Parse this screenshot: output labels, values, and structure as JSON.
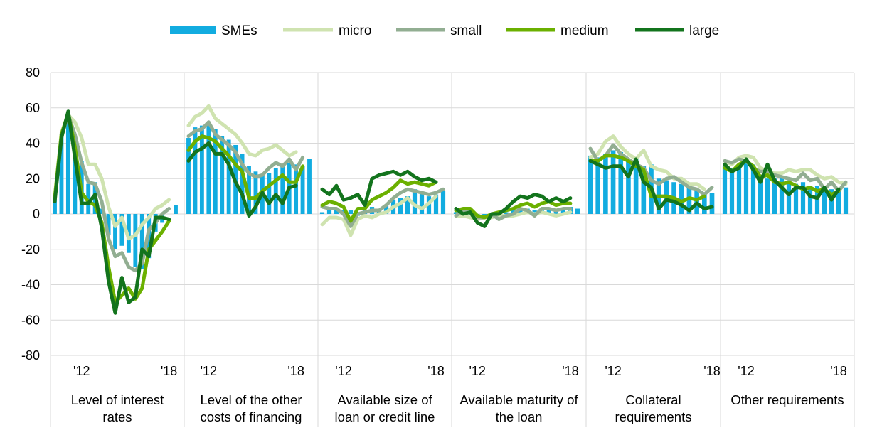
{
  "chart_data": {
    "type": "bar+line",
    "legend": [
      "SMEs",
      "micro",
      "small",
      "medium",
      "large"
    ],
    "legend_position": "top",
    "colors": {
      "SMEs": "#12ace0",
      "micro": "#cfe3b0",
      "small": "#92ae92",
      "medium": "#6bb000",
      "large": "#13741d"
    },
    "ylim": [
      -80,
      80
    ],
    "yticks": [
      -80,
      -60,
      -40,
      -20,
      0,
      20,
      40,
      60,
      80
    ],
    "ytick_labels": [
      "-80",
      "-60",
      "-40",
      "-20",
      "0",
      "20",
      "40",
      "60",
      "80"
    ],
    "grid": true,
    "panels": [
      {
        "label_lines": [
          "Level of interest",
          "rates"
        ],
        "xtick_labels": [
          "'12",
          "'18"
        ],
        "xtick_positions": [
          4,
          17
        ],
        "series": {
          "SMEs": [
            12,
            45,
            55,
            44,
            30,
            17,
            18,
            3,
            -12,
            -20,
            -18,
            -22,
            -30,
            -31,
            -25,
            -10,
            -5,
            0,
            5
          ],
          "micro": [
            10,
            46,
            56,
            52,
            43,
            28,
            28,
            20,
            4,
            -7,
            -2,
            -14,
            -12,
            -6,
            -2,
            3,
            5,
            8
          ],
          "small": [
            8,
            44,
            56,
            45,
            29,
            18,
            17,
            7,
            -14,
            -24,
            -22,
            -30,
            -32,
            -28,
            -9,
            -5,
            0,
            3
          ],
          "medium": [
            9,
            45,
            57,
            38,
            12,
            7,
            5,
            -5,
            -30,
            -50,
            -46,
            -42,
            -48,
            -42,
            -20,
            -15,
            -10,
            -4
          ],
          "large": [
            7,
            43,
            58,
            32,
            6,
            6,
            11,
            -8,
            -38,
            -56,
            -36,
            -50,
            -47,
            -20,
            -24,
            -2,
            -2,
            -3
          ]
        }
      },
      {
        "label_lines": [
          "Level of the other",
          "costs of financing"
        ],
        "xtick_labels": [
          "'12",
          "'18"
        ],
        "xtick_positions": [
          3,
          16
        ],
        "series": {
          "SMEs": [
            43,
            49,
            50,
            51,
            48,
            44,
            42,
            39,
            34,
            27,
            24,
            22,
            23,
            26,
            27,
            29,
            28,
            27,
            31
          ],
          "micro": [
            50,
            55,
            57,
            61,
            54,
            51,
            48,
            45,
            40,
            34,
            33,
            36,
            37,
            39,
            36,
            33,
            35
          ],
          "small": [
            44,
            47,
            48,
            52,
            45,
            42,
            39,
            35,
            28,
            23,
            21,
            22,
            26,
            29,
            27,
            31,
            25,
            32
          ],
          "medium": [
            36,
            41,
            44,
            43,
            41,
            37,
            33,
            28,
            24,
            9,
            9,
            13,
            16,
            19,
            22,
            18,
            18,
            27
          ],
          "large": [
            30,
            35,
            37,
            40,
            34,
            34,
            28,
            18,
            11,
            -1,
            4,
            12,
            6,
            11,
            6,
            15,
            16
          ]
        }
      },
      {
        "label_lines": [
          "Available size of",
          "loan or credit line"
        ],
        "xtick_labels": [
          "'12",
          "'18"
        ],
        "xtick_positions": [
          3,
          16
        ],
        "series": {
          "SMEs": [
            1,
            4,
            3,
            2,
            2,
            -1,
            2,
            4,
            3,
            5,
            8,
            9,
            10,
            14,
            12,
            10,
            11,
            13
          ],
          "micro": [
            -6,
            -2,
            -2,
            -3,
            -12,
            -3,
            -1,
            -2,
            0,
            1,
            4,
            6,
            9,
            5,
            3,
            6,
            10
          ],
          "small": [
            4,
            3,
            3,
            0,
            -7,
            0,
            1,
            2,
            2,
            5,
            9,
            12,
            14,
            13,
            12,
            11,
            12,
            14
          ],
          "medium": [
            5,
            7,
            6,
            4,
            -4,
            3,
            3,
            8,
            10,
            12,
            15,
            19,
            17,
            18,
            17,
            16,
            18
          ],
          "large": [
            14,
            11,
            16,
            8,
            9,
            11,
            5,
            20,
            22,
            23,
            24,
            22,
            24,
            21,
            19,
            20,
            18
          ]
        }
      },
      {
        "label_lines": [
          "Available maturity of",
          "the loan"
        ],
        "xtick_labels": [
          "'12",
          "'18"
        ],
        "xtick_positions": [
          3,
          16
        ],
        "series": {
          "SMEs": [
            1,
            2,
            1,
            -1,
            -1,
            -1,
            0,
            1,
            2,
            2,
            3,
            2,
            3,
            3,
            3,
            3,
            4,
            3
          ],
          "micro": [
            -1,
            -1,
            -2,
            -3,
            -2,
            -2,
            -1,
            -1,
            -1,
            0,
            1,
            0,
            1,
            0,
            -1,
            0,
            1
          ],
          "small": [
            -1,
            2,
            1,
            -2,
            -2,
            0,
            -3,
            -1,
            0,
            3,
            2,
            -1,
            3,
            3,
            2,
            3,
            3
          ],
          "medium": [
            2,
            3,
            3,
            -1,
            -2,
            0,
            1,
            2,
            3,
            5,
            6,
            4,
            6,
            7,
            5,
            6,
            6
          ],
          "large": [
            3,
            0,
            1,
            -5,
            -7,
            0,
            0,
            3,
            7,
            10,
            9,
            11,
            10,
            7,
            9,
            7,
            9
          ]
        }
      },
      {
        "label_lines": [
          "Collateral",
          "requirements"
        ],
        "xtick_labels": [
          "'12",
          "'18"
        ],
        "xtick_positions": [
          3,
          16
        ],
        "series": {
          "SMEs": [
            33,
            32,
            34,
            36,
            35,
            30,
            31,
            27,
            28,
            20,
            19,
            18,
            17,
            16,
            14,
            12,
            12
          ],
          "micro": [
            32,
            34,
            41,
            44,
            38,
            34,
            31,
            36,
            27,
            25,
            24,
            20,
            20,
            17,
            17,
            14
          ],
          "small": [
            37,
            30,
            33,
            39,
            34,
            31,
            28,
            26,
            19,
            17,
            20,
            21,
            18,
            15,
            14,
            11,
            15
          ],
          "medium": [
            30,
            30,
            33,
            33,
            32,
            30,
            27,
            25,
            10,
            10,
            10,
            9,
            7,
            9,
            8,
            10
          ],
          "large": [
            30,
            28,
            26,
            27,
            27,
            21,
            31,
            18,
            15,
            3,
            8,
            7,
            5,
            2,
            6,
            3,
            4
          ]
        }
      },
      {
        "label_lines": [
          "Other requirements"
        ],
        "xtick_labels": [
          "'12",
          "'18"
        ],
        "xtick_positions": [
          3,
          16
        ],
        "series": {
          "SMEs": [
            27,
            26,
            26,
            29,
            28,
            22,
            20,
            20,
            21,
            19,
            17,
            18,
            16,
            16,
            15,
            14,
            14,
            15
          ],
          "micro": [
            30,
            28,
            32,
            33,
            32,
            26,
            24,
            23,
            23,
            25,
            24,
            25,
            25,
            22,
            20,
            21,
            18,
            17
          ],
          "small": [
            30,
            29,
            31,
            30,
            26,
            24,
            24,
            22,
            21,
            20,
            19,
            23,
            19,
            20,
            14,
            18,
            13,
            18
          ],
          "medium": [
            26,
            24,
            28,
            30,
            27,
            21,
            22,
            18,
            17,
            18,
            16,
            14,
            15,
            13,
            14,
            11,
            13
          ],
          "large": [
            28,
            24,
            26,
            31,
            25,
            18,
            28,
            19,
            15,
            11,
            15,
            15,
            10,
            9,
            15,
            8,
            14
          ]
        }
      }
    ]
  }
}
